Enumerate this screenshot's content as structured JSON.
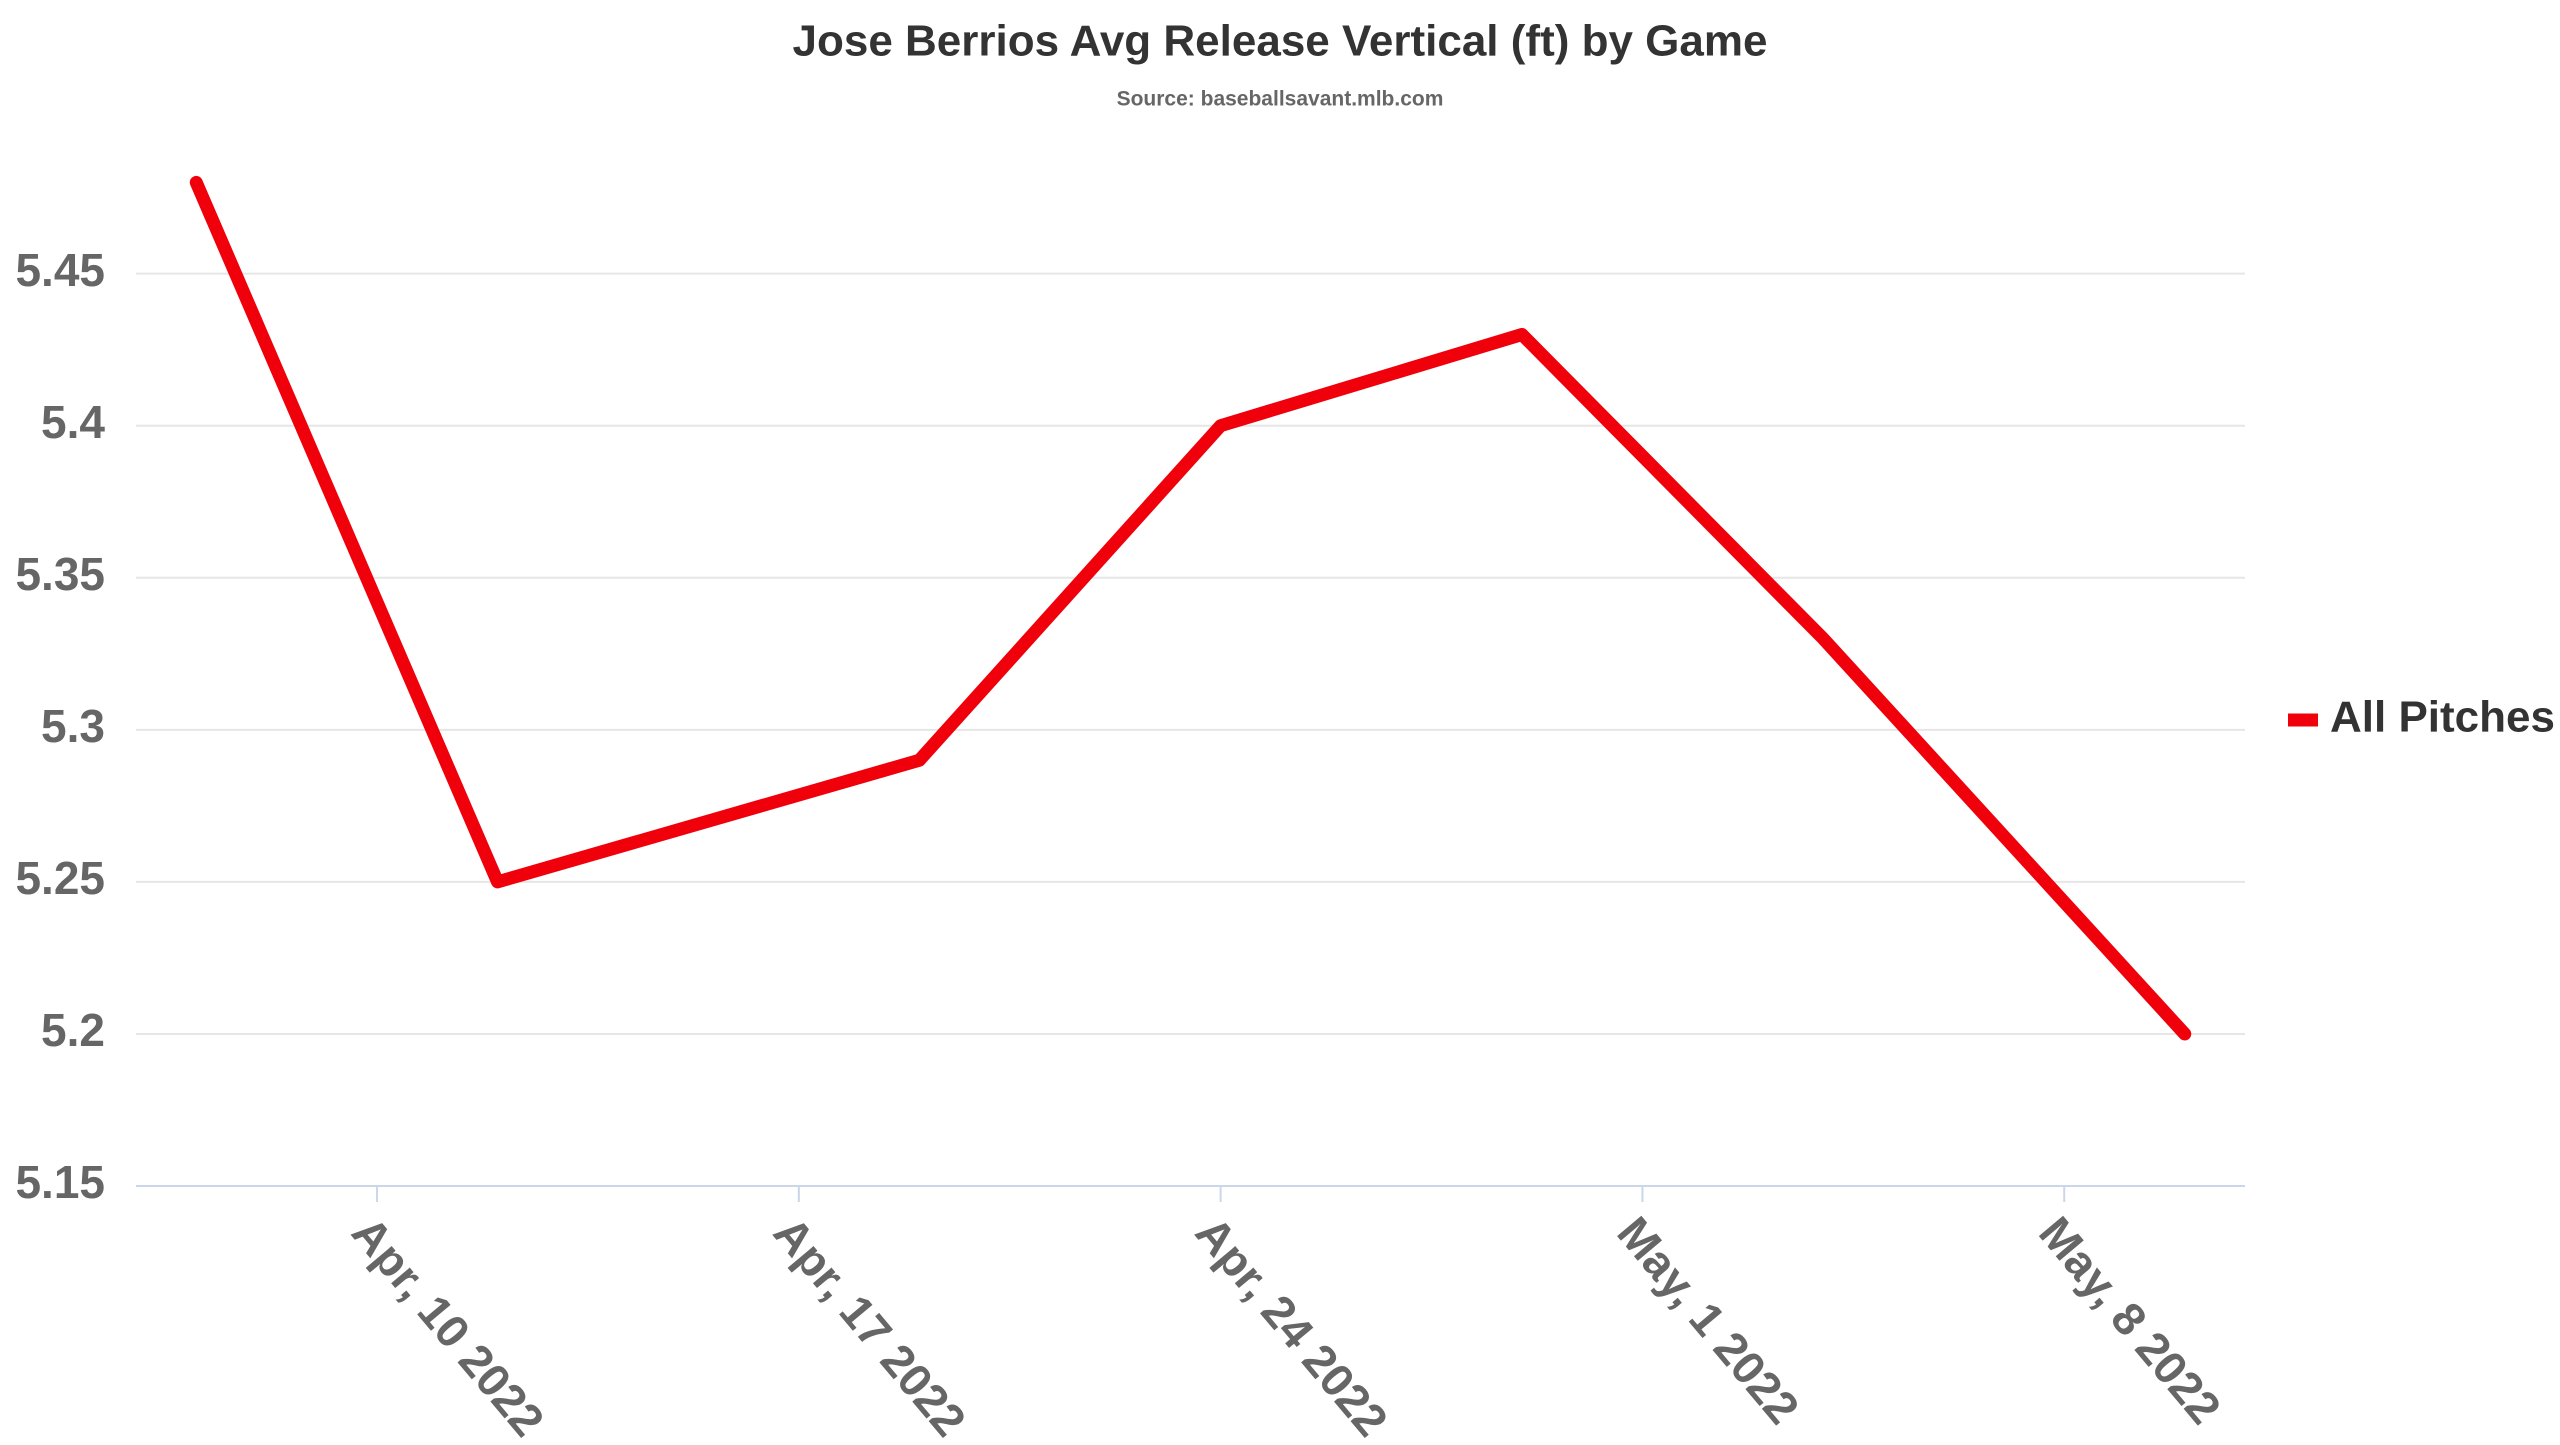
{
  "chart_data": {
    "type": "line",
    "title": "Jose Berrios Avg Release Vertical (ft) by Game",
    "subtitle": "Source: baseballsavant.mlb.com",
    "x": [
      "2022-04-07",
      "2022-04-12",
      "2022-04-19",
      "2022-04-24",
      "2022-04-29",
      "2022-05-04",
      "2022-05-10"
    ],
    "series": [
      {
        "name": "All Pitches",
        "color": "#f0000a",
        "values": [
          5.48,
          5.25,
          5.29,
          5.4,
          5.43,
          5.33,
          5.2
        ]
      }
    ],
    "xlim": [
      "2022-04-06",
      "2022-05-11"
    ],
    "xticks": [
      {
        "value": "2022-04-10",
        "label": "Apr, 10 2022"
      },
      {
        "value": "2022-04-17",
        "label": "Apr, 17 2022"
      },
      {
        "value": "2022-04-24",
        "label": "Apr, 24 2022"
      },
      {
        "value": "2022-05-01",
        "label": "May, 1 2022"
      },
      {
        "value": "2022-05-08",
        "label": "May, 8 2022"
      }
    ],
    "ylim": [
      5.15,
      5.49
    ],
    "yticks": [
      5.15,
      5.2,
      5.25,
      5.3,
      5.35,
      5.4,
      5.45
    ],
    "grid": true,
    "legend": "right"
  }
}
